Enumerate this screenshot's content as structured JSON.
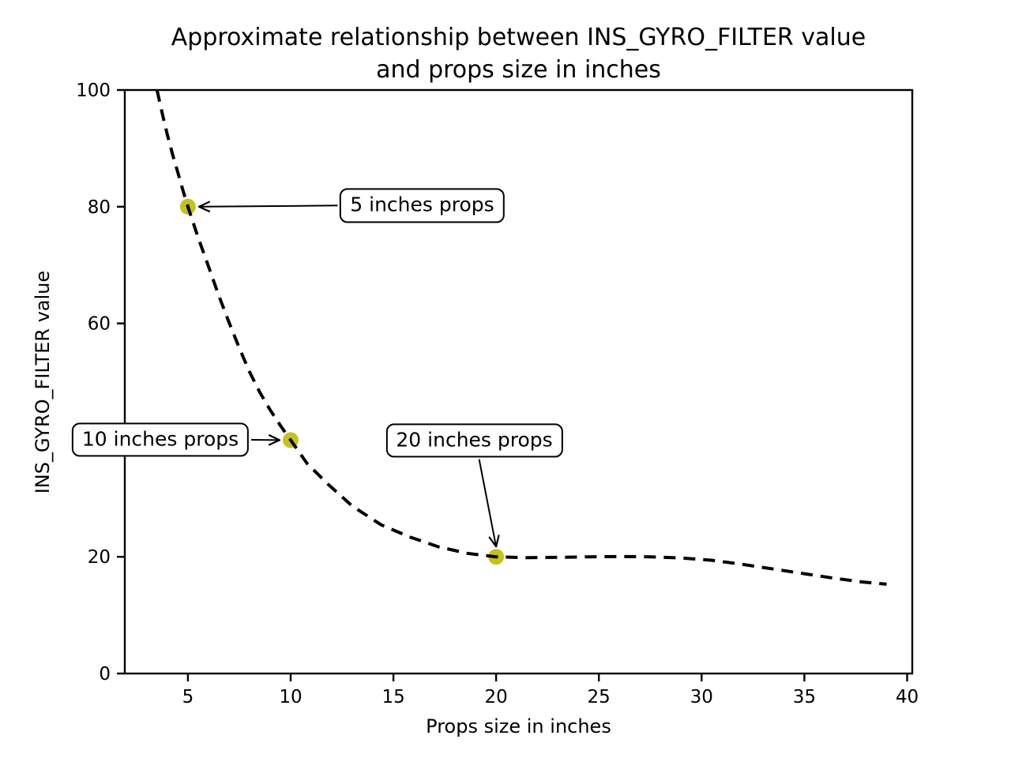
{
  "page": {
    "background": "#ffffff"
  },
  "chart_data": {
    "type": "line",
    "title": "Approximate relationship between INS_GYRO_FILTER value and props size in inches",
    "title_lines": [
      "Approximate relationship between INS_GYRO_FILTER value",
      "and props size in inches"
    ],
    "xlabel": "Props size in inches",
    "ylabel": "INS_GYRO_FILTER value",
    "xlim": [
      1.93,
      40.25
    ],
    "ylim": [
      0,
      100
    ],
    "x_ticks": [
      5,
      10,
      15,
      20,
      25,
      30,
      35,
      40
    ],
    "y_ticks": [
      0,
      20,
      40,
      60,
      80,
      100
    ],
    "grid": false,
    "legend": "none",
    "line": {
      "style": "dashed",
      "color": "#000000",
      "width": 4,
      "dash": [
        15,
        10
      ]
    },
    "curve_points": [
      [
        3.5,
        100
      ],
      [
        3.75,
        96.0
      ],
      [
        4.0,
        92.3
      ],
      [
        4.25,
        89.0
      ],
      [
        4.5,
        86.0
      ],
      [
        4.75,
        82.9
      ],
      [
        5.0,
        80.0
      ],
      [
        5.5,
        74.7
      ],
      [
        6.0,
        69.8
      ],
      [
        6.5,
        64.8
      ],
      [
        7.0,
        60.2
      ],
      [
        7.5,
        55.8
      ],
      [
        8.0,
        51.7
      ],
      [
        8.5,
        48.2
      ],
      [
        9.0,
        45.2
      ],
      [
        9.5,
        42.5
      ],
      [
        10.0,
        40.0
      ],
      [
        10.8,
        36.0
      ],
      [
        11.8,
        32.5
      ],
      [
        13.0,
        28.7
      ],
      [
        14.4,
        25.5
      ],
      [
        15.8,
        23.4
      ],
      [
        17.2,
        21.7
      ],
      [
        18.6,
        20.6
      ],
      [
        20.0,
        20.0
      ],
      [
        21.5,
        19.85
      ],
      [
        23.0,
        19.9
      ],
      [
        24.5,
        20.0
      ],
      [
        26.0,
        20.05
      ],
      [
        27.5,
        20.0
      ],
      [
        29.0,
        19.8
      ],
      [
        30.5,
        19.4
      ],
      [
        32.0,
        18.7
      ],
      [
        33.5,
        17.9
      ],
      [
        35.0,
        17.1
      ],
      [
        36.5,
        16.3
      ],
      [
        37.8,
        15.7
      ],
      [
        39.0,
        15.3
      ]
    ],
    "markers": {
      "shape": "circle",
      "color": "#c3c31c",
      "radius": 10,
      "points": [
        [
          5,
          80
        ],
        [
          10,
          40
        ],
        [
          20,
          20
        ]
      ]
    },
    "annotations": [
      {
        "label": "5 inches props",
        "point": [
          5,
          80
        ],
        "text_center": [
          16.4,
          80.2
        ],
        "arrow_from": "left"
      },
      {
        "label": "10 inches props",
        "point": [
          10,
          40
        ],
        "text_center": [
          3.66,
          40.05
        ],
        "arrow_from": "right"
      },
      {
        "label": "20 inches props",
        "point": [
          20,
          20
        ],
        "text_center": [
          18.94,
          39.9
        ],
        "arrow_from": "bottom"
      }
    ],
    "axis_color": "#000000",
    "annotation_fill": "#ffffff",
    "annotation_border": "#000000"
  }
}
